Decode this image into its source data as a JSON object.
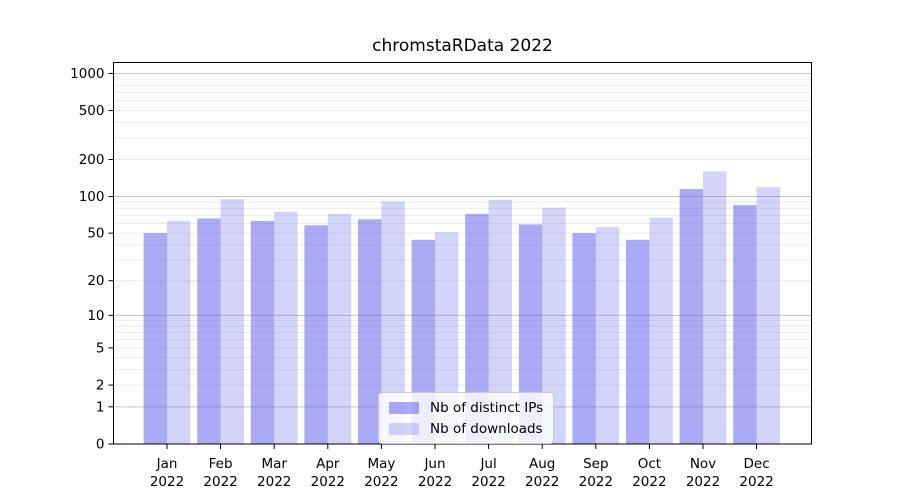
{
  "title": "chromstaRData 2022",
  "chart_data": {
    "type": "bar",
    "title": "chromstaRData 2022",
    "categories": [
      "Jan 2022",
      "Feb 2022",
      "Mar 2022",
      "Apr 2022",
      "May 2022",
      "Jun 2022",
      "Jul 2022",
      "Aug 2022",
      "Sep 2022",
      "Oct 2022",
      "Nov 2022",
      "Dec 2022"
    ],
    "series": [
      {
        "name": "Nb of distinct IPs",
        "color": "#5555eb",
        "opacity": 0.5,
        "values": [
          50,
          66,
          63,
          58,
          65,
          44,
          72,
          59,
          50,
          44,
          115,
          85
        ]
      },
      {
        "name": "Nb of downloads",
        "color": "#5555eb",
        "opacity": 0.25,
        "values": [
          63,
          95,
          75,
          72,
          91,
          51,
          94,
          81,
          56,
          67,
          160,
          119
        ]
      }
    ],
    "yscale": "log1p",
    "y_tick_labels": [
      0,
      1,
      2,
      5,
      10,
      20,
      50,
      100,
      200,
      500,
      1000
    ],
    "ylim": [
      0,
      1200
    ],
    "grid": true,
    "legend_position": "lower center"
  },
  "colors": {
    "background": "#ffffff",
    "axis": "#000000",
    "major_grid": "#c6c6c6",
    "minor_grid": "#ebebeb",
    "tick_text": "#000000"
  }
}
